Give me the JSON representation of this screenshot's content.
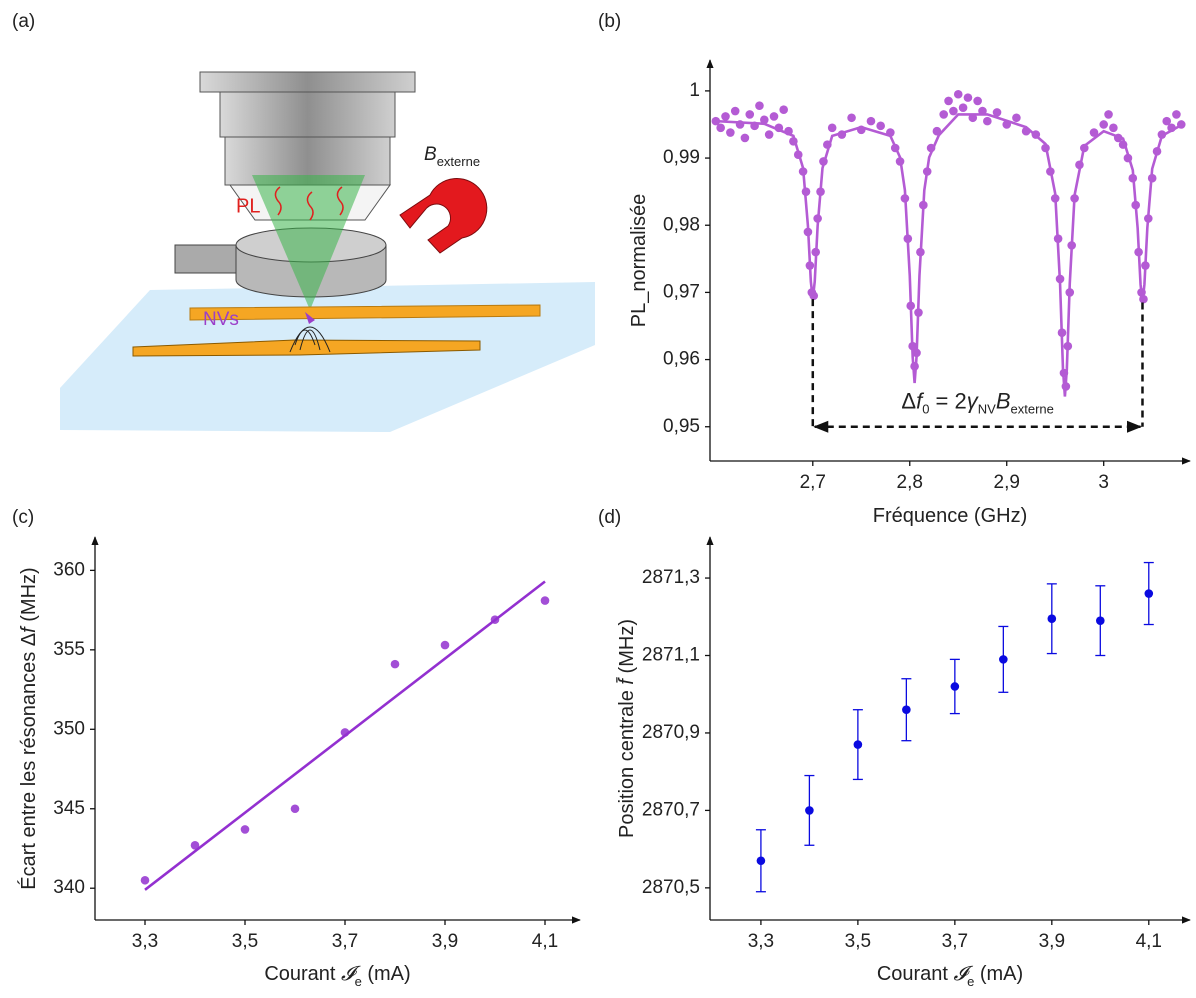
{
  "diagram": {
    "label": "(a)",
    "b_field": [
      {
        "text": "B",
        "italic": true
      },
      {
        "text": "externe",
        "sub": true
      }
    ],
    "pl": "PL",
    "nvs": "NVs"
  },
  "chart_data": [
    {
      "type": "scatter",
      "label": "(b)",
      "xlabel": [
        {
          "text": "Fréquence (GHz)"
        }
      ],
      "ylabel": [
        {
          "text": "PL_normalisée"
        }
      ],
      "xlim": [
        2.594,
        3.089
      ],
      "ylim": [
        0.9449,
        1.0046
      ],
      "xticks": [
        {
          "value": 2.7,
          "label": "2,7"
        },
        {
          "value": 2.8,
          "label": "2,8"
        },
        {
          "value": 2.9,
          "label": "2,9"
        },
        3
      ],
      "yticks": [
        {
          "value": 0.95,
          "label": "0,95"
        },
        {
          "value": 0.96,
          "label": "0,96"
        },
        {
          "value": 0.97,
          "label": "0,97"
        },
        {
          "value": 0.98,
          "label": "0,98"
        },
        {
          "value": 0.99,
          "label": "0,99"
        },
        1
      ],
      "series": [
        {
          "color": "#b45bd4",
          "x": [
            2.6,
            2.605,
            2.61,
            2.615,
            2.62,
            2.625,
            2.63,
            2.635,
            2.64,
            2.645,
            2.65,
            2.655,
            2.66,
            2.665,
            2.67,
            2.675,
            2.68,
            2.685,
            2.69,
            2.693,
            2.695,
            2.697,
            2.699,
            2.701,
            2.703,
            2.705,
            2.708,
            2.711,
            2.715,
            2.72,
            2.73,
            2.74,
            2.75,
            2.76,
            2.77,
            2.78,
            2.785,
            2.79,
            2.795,
            2.798,
            2.801,
            2.803,
            2.805,
            2.807,
            2.809,
            2.811,
            2.814,
            2.818,
            2.822,
            2.828,
            2.835,
            2.84,
            2.845,
            2.85,
            2.855,
            2.86,
            2.865,
            2.87,
            2.875,
            2.88,
            2.89,
            2.9,
            2.91,
            2.92,
            2.93,
            2.94,
            2.945,
            2.95,
            2.953,
            2.955,
            2.957,
            2.959,
            2.961,
            2.963,
            2.965,
            2.967,
            2.97,
            2.975,
            2.98,
            2.99,
            3.0,
            3.005,
            3.01,
            3.015,
            3.02,
            3.025,
            3.03,
            3.033,
            3.036,
            3.039,
            3.041,
            3.043,
            3.046,
            3.05,
            3.055,
            3.06,
            3.065,
            3.07,
            3.075,
            3.08
          ],
          "values": [
            0.9955,
            0.9945,
            0.9962,
            0.9938,
            0.997,
            0.995,
            0.993,
            0.9965,
            0.9948,
            0.9978,
            0.9957,
            0.9935,
            0.9962,
            0.9945,
            0.9972,
            0.994,
            0.9925,
            0.9905,
            0.988,
            0.985,
            0.979,
            0.974,
            0.97,
            0.9695,
            0.976,
            0.981,
            0.985,
            0.9895,
            0.992,
            0.9945,
            0.9935,
            0.996,
            0.9942,
            0.9955,
            0.9948,
            0.9938,
            0.9915,
            0.9895,
            0.984,
            0.978,
            0.968,
            0.962,
            0.959,
            0.961,
            0.967,
            0.976,
            0.983,
            0.988,
            0.9915,
            0.994,
            0.9965,
            0.9985,
            0.997,
            0.9995,
            0.9975,
            0.999,
            0.996,
            0.9985,
            0.997,
            0.9955,
            0.9968,
            0.995,
            0.996,
            0.994,
            0.9935,
            0.9915,
            0.988,
            0.984,
            0.978,
            0.972,
            0.964,
            0.958,
            0.956,
            0.962,
            0.97,
            0.977,
            0.984,
            0.989,
            0.9915,
            0.9938,
            0.995,
            0.9965,
            0.9945,
            0.993,
            0.992,
            0.99,
            0.987,
            0.983,
            0.976,
            0.97,
            0.969,
            0.974,
            0.981,
            0.987,
            0.991,
            0.9935,
            0.9955,
            0.9945,
            0.9965,
            0.995
          ]
        },
        {
          "type": "line",
          "color": "#b45bd4",
          "x": [
            2.6,
            2.65,
            2.68,
            2.69,
            2.695,
            2.698,
            2.7,
            2.702,
            2.705,
            2.71,
            2.72,
            2.75,
            2.78,
            2.79,
            2.795,
            2.8,
            2.803,
            2.805,
            2.807,
            2.81,
            2.815,
            2.82,
            2.83,
            2.85,
            2.88,
            2.92,
            2.94,
            2.95,
            2.955,
            2.958,
            2.96,
            2.962,
            2.965,
            2.97,
            2.98,
            3.0,
            3.02,
            3.03,
            3.035,
            3.038,
            3.04,
            3.042,
            3.045,
            3.05,
            3.06,
            3.08
          ],
          "values": [
            0.9955,
            0.9951,
            0.9933,
            0.9885,
            0.9799,
            0.9716,
            0.969,
            0.9716,
            0.9799,
            0.9885,
            0.9933,
            0.9946,
            0.9933,
            0.9901,
            0.9852,
            0.9725,
            0.9604,
            0.9565,
            0.9604,
            0.9725,
            0.9852,
            0.9901,
            0.9934,
            0.9965,
            0.9965,
            0.9946,
            0.9921,
            0.9847,
            0.9713,
            0.9586,
            0.9545,
            0.9586,
            0.9713,
            0.9845,
            0.9918,
            0.994,
            0.9929,
            0.9882,
            0.9796,
            0.9712,
            0.9685,
            0.9712,
            0.9796,
            0.9884,
            0.9933,
            0.9949
          ]
        }
      ],
      "annotation": {
        "x": [
          2.7,
          3.04
        ],
        "y": 0.95,
        "parts": [
          {
            "text": "Δ"
          },
          {
            "text": "f",
            "italic": true
          },
          {
            "text": "0",
            "sub": true
          },
          {
            "text": " = 2"
          },
          {
            "text": "γ",
            "italic": true
          },
          {
            "text": "NV",
            "sub": true
          },
          {
            "text": "B",
            "italic": true
          },
          {
            "text": "externe",
            "sub": true
          }
        ]
      }
    },
    {
      "type": "scatter",
      "label": "(c)",
      "xlabel": [
        {
          "text": "Courant "
        },
        {
          "text": "𝓘",
          "italic": true
        },
        {
          "text": "e",
          "sub": true
        },
        {
          "text": " (mA)"
        }
      ],
      "ylabel": [
        {
          "text": "Écart entre les résonances Δ"
        },
        {
          "text": "f",
          "italic": true
        },
        {
          "text": " (MHz)"
        }
      ],
      "xlim": [
        3.2,
        4.17
      ],
      "ylim": [
        338.0,
        362.1
      ],
      "xticks": [
        {
          "value": 3.3,
          "label": "3,3"
        },
        {
          "value": 3.5,
          "label": "3,5"
        },
        {
          "value": 3.7,
          "label": "3,7"
        },
        {
          "value": 3.9,
          "label": "3,9"
        },
        {
          "value": 4.1,
          "label": "4,1"
        }
      ],
      "yticks": [
        340,
        345,
        350,
        355,
        360
      ],
      "series": [
        {
          "color": "#a24ed6",
          "x": [
            3.3,
            3.4,
            3.5,
            3.6,
            3.7,
            3.8,
            3.9,
            4.0,
            4.1
          ],
          "values": [
            340.5,
            342.7,
            343.7,
            345.0,
            349.8,
            354.1,
            355.3,
            356.9,
            358.1
          ]
        },
        {
          "type": "line",
          "color": "#9330d0",
          "x": [
            3.3,
            4.1
          ],
          "values": [
            339.9,
            359.3
          ]
        }
      ]
    },
    {
      "type": "errorbar",
      "label": "(d)",
      "xlabel": [
        {
          "text": "Courant "
        },
        {
          "text": "𝓘",
          "italic": true
        },
        {
          "text": "e",
          "sub": true
        },
        {
          "text": " (mA)"
        }
      ],
      "ylabel": [
        {
          "text": "Position centrale "
        },
        {
          "text": "f̄",
          "italic": true
        },
        {
          "text": " (MHz)"
        }
      ],
      "xlim": [
        3.195,
        4.185
      ],
      "ylim": [
        2870.417,
        2871.406
      ],
      "xticks": [
        {
          "value": 3.3,
          "label": "3,3"
        },
        {
          "value": 3.5,
          "label": "3,5"
        },
        {
          "value": 3.7,
          "label": "3,7"
        },
        {
          "value": 3.9,
          "label": "3,9"
        },
        {
          "value": 4.1,
          "label": "4,1"
        }
      ],
      "yticks": [
        {
          "value": 2870.5,
          "label": "2870,5"
        },
        {
          "value": 2870.7,
          "label": "2870,7"
        },
        {
          "value": 2870.9,
          "label": "2870,9"
        },
        {
          "value": 2871.1,
          "label": "2871,1"
        },
        {
          "value": 2871.3,
          "label": "2871,3"
        }
      ],
      "series": [
        {
          "color": "#0a0ae0",
          "x": [
            3.3,
            3.4,
            3.5,
            3.6,
            3.7,
            3.8,
            3.9,
            4.0,
            4.1
          ],
          "values": [
            2870.57,
            2870.7,
            2870.87,
            2870.96,
            2871.02,
            2871.09,
            2871.195,
            2871.19,
            2871.26
          ],
          "errors": [
            0.08,
            0.09,
            0.09,
            0.08,
            0.07,
            0.085,
            0.09,
            0.09,
            0.08
          ]
        }
      ]
    }
  ]
}
